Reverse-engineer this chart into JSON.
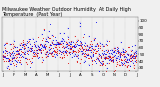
{
  "title": "Milwaukee Weather Outdoor Humidity At Daily High Temperature (Past Year)",
  "title_fontsize": 3.5,
  "background_color": "#f0f0f0",
  "ylim": [
    25,
    105
  ],
  "yticks": [
    30,
    40,
    50,
    60,
    70,
    80,
    90,
    100
  ],
  "ylabel_fontsize": 3.0,
  "xlabel_fontsize": 2.8,
  "n_days": 365,
  "seed": 42,
  "blue_color": "#0000ee",
  "red_color": "#dd0000",
  "grid_color": "#999999",
  "spine_color": "#666666",
  "dot_size": 0.4,
  "n_gridlines": 13,
  "spike_indices": [
    88,
    130,
    175,
    210,
    255
  ],
  "spike_values": [
    110,
    95,
    108,
    92,
    98
  ],
  "base_humidity": 55,
  "base_amplitude": 8
}
